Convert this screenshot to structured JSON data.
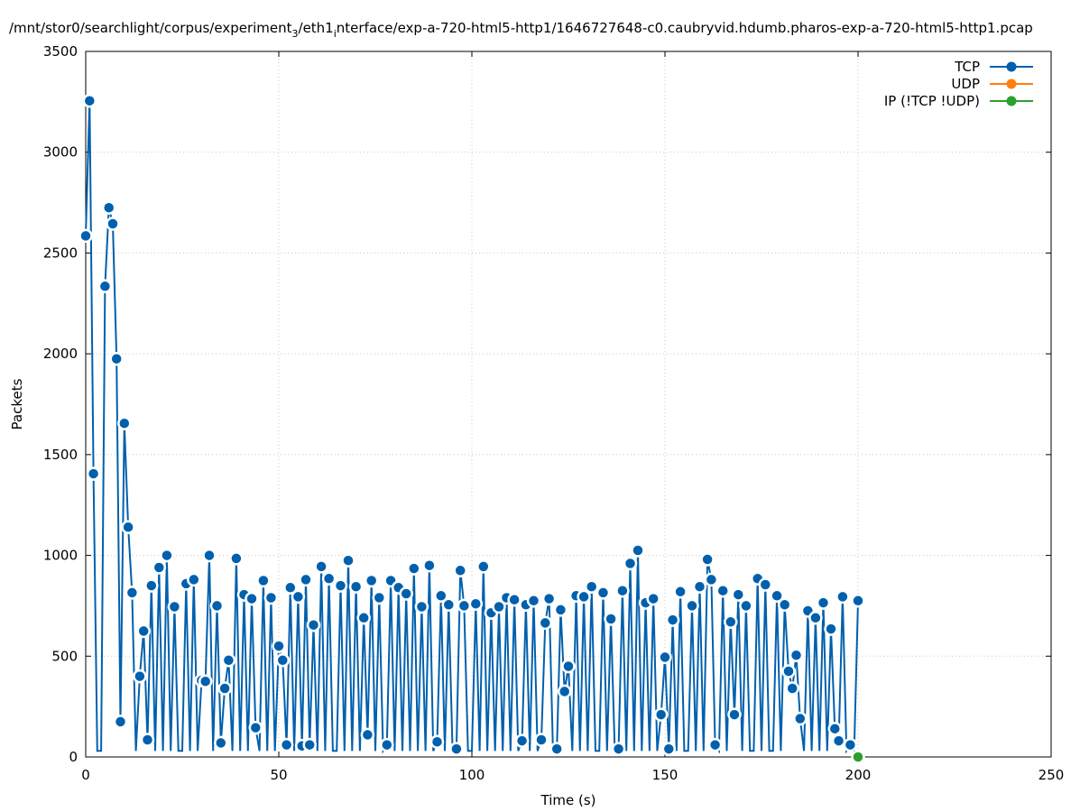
{
  "chart_data": {
    "type": "line",
    "title": "/mnt/stor0/searchlight/corpus/experiment",
    "title_sub": "3",
    "title_rest": "/eth1",
    "title_sub2": "i",
    "title_rest2": "nterface/exp-a-720-html5-http1/1646727648-c0.caubryvid.hdumb.pharos-exp-a-720-html5-http1.pcap",
    "xlabel": "Time (s)",
    "ylabel": "Packets",
    "xlim": [
      0,
      250
    ],
    "ylim": [
      0,
      3500
    ],
    "xticks": [
      0,
      50,
      100,
      150,
      200,
      250
    ],
    "yticks": [
      0,
      500,
      1000,
      1500,
      2000,
      2500,
      3000,
      3500
    ],
    "grid": true,
    "legend_position": "top-right",
    "series": [
      {
        "name": "TCP",
        "color": "#0060ad",
        "points": [
          [
            0,
            2585
          ],
          [
            1,
            3255
          ],
          [
            2,
            1405
          ],
          [
            3,
            30
          ],
          [
            4,
            30
          ],
          [
            5,
            2335
          ],
          [
            6,
            2725
          ],
          [
            7,
            2645
          ],
          [
            8,
            1975
          ],
          [
            9,
            175
          ],
          [
            10,
            1655
          ],
          [
            11,
            1140
          ],
          [
            12,
            815
          ],
          [
            13,
            30
          ],
          [
            14,
            400
          ],
          [
            15,
            625
          ],
          [
            16,
            85
          ],
          [
            17,
            850
          ],
          [
            18,
            30
          ],
          [
            19,
            940
          ],
          [
            20,
            30
          ],
          [
            21,
            1000
          ],
          [
            22,
            30
          ],
          [
            23,
            745
          ],
          [
            24,
            30
          ],
          [
            25,
            30
          ],
          [
            26,
            860
          ],
          [
            27,
            30
          ],
          [
            28,
            880
          ],
          [
            29,
            30
          ],
          [
            30,
            380
          ],
          [
            31,
            375
          ],
          [
            32,
            1000
          ],
          [
            33,
            30
          ],
          [
            34,
            750
          ],
          [
            35,
            70
          ],
          [
            36,
            340
          ],
          [
            37,
            480
          ],
          [
            38,
            30
          ],
          [
            39,
            985
          ],
          [
            40,
            30
          ],
          [
            41,
            805
          ],
          [
            42,
            30
          ],
          [
            43,
            785
          ],
          [
            44,
            145
          ],
          [
            45,
            30
          ],
          [
            46,
            875
          ],
          [
            47,
            30
          ],
          [
            48,
            790
          ],
          [
            49,
            30
          ],
          [
            50,
            550
          ],
          [
            51,
            480
          ],
          [
            52,
            60
          ],
          [
            53,
            840
          ],
          [
            54,
            30
          ],
          [
            55,
            795
          ],
          [
            56,
            55
          ],
          [
            57,
            880
          ],
          [
            58,
            60
          ],
          [
            59,
            655
          ],
          [
            60,
            30
          ],
          [
            61,
            945
          ],
          [
            62,
            30
          ],
          [
            63,
            885
          ],
          [
            64,
            30
          ],
          [
            65,
            30
          ],
          [
            66,
            850
          ],
          [
            67,
            30
          ],
          [
            68,
            975
          ],
          [
            69,
            30
          ],
          [
            70,
            845
          ],
          [
            71,
            30
          ],
          [
            72,
            690
          ],
          [
            73,
            110
          ],
          [
            74,
            875
          ],
          [
            75,
            30
          ],
          [
            76,
            790
          ],
          [
            77,
            30
          ],
          [
            78,
            60
          ],
          [
            79,
            875
          ],
          [
            80,
            30
          ],
          [
            81,
            840
          ],
          [
            82,
            30
          ],
          [
            83,
            810
          ],
          [
            84,
            30
          ],
          [
            85,
            935
          ],
          [
            86,
            30
          ],
          [
            87,
            745
          ],
          [
            88,
            30
          ],
          [
            89,
            950
          ],
          [
            90,
            30
          ],
          [
            91,
            75
          ],
          [
            92,
            800
          ],
          [
            93,
            30
          ],
          [
            94,
            755
          ],
          [
            95,
            30
          ],
          [
            96,
            40
          ],
          [
            97,
            925
          ],
          [
            98,
            750
          ],
          [
            99,
            30
          ],
          [
            100,
            30
          ],
          [
            101,
            760
          ],
          [
            102,
            30
          ],
          [
            103,
            945
          ],
          [
            104,
            30
          ],
          [
            105,
            715
          ],
          [
            106,
            30
          ],
          [
            107,
            745
          ],
          [
            108,
            30
          ],
          [
            109,
            790
          ],
          [
            110,
            30
          ],
          [
            111,
            780
          ],
          [
            112,
            30
          ],
          [
            113,
            80
          ],
          [
            114,
            755
          ],
          [
            115,
            30
          ],
          [
            116,
            775
          ],
          [
            117,
            30
          ],
          [
            118,
            85
          ],
          [
            119,
            665
          ],
          [
            120,
            785
          ],
          [
            121,
            30
          ],
          [
            122,
            40
          ],
          [
            123,
            730
          ],
          [
            124,
            325
          ],
          [
            125,
            450
          ],
          [
            126,
            30
          ],
          [
            127,
            800
          ],
          [
            128,
            30
          ],
          [
            129,
            795
          ],
          [
            130,
            30
          ],
          [
            131,
            845
          ],
          [
            132,
            30
          ],
          [
            133,
            30
          ],
          [
            134,
            815
          ],
          [
            135,
            30
          ],
          [
            136,
            685
          ],
          [
            137,
            30
          ],
          [
            138,
            40
          ],
          [
            139,
            825
          ],
          [
            140,
            30
          ],
          [
            141,
            960
          ],
          [
            142,
            30
          ],
          [
            143,
            1025
          ],
          [
            144,
            30
          ],
          [
            145,
            765
          ],
          [
            146,
            30
          ],
          [
            147,
            785
          ],
          [
            148,
            30
          ],
          [
            149,
            210
          ],
          [
            150,
            495
          ],
          [
            151,
            40
          ],
          [
            152,
            680
          ],
          [
            153,
            30
          ],
          [
            154,
            820
          ],
          [
            155,
            30
          ],
          [
            156,
            30
          ],
          [
            157,
            750
          ],
          [
            158,
            30
          ],
          [
            159,
            845
          ],
          [
            160,
            30
          ],
          [
            161,
            980
          ],
          [
            162,
            880
          ],
          [
            163,
            60
          ],
          [
            164,
            30
          ],
          [
            165,
            825
          ],
          [
            166,
            30
          ],
          [
            167,
            670
          ],
          [
            168,
            210
          ],
          [
            169,
            805
          ],
          [
            170,
            30
          ],
          [
            171,
            750
          ],
          [
            172,
            30
          ],
          [
            173,
            30
          ],
          [
            174,
            885
          ],
          [
            175,
            30
          ],
          [
            176,
            855
          ],
          [
            177,
            30
          ],
          [
            178,
            30
          ],
          [
            179,
            800
          ],
          [
            180,
            30
          ],
          [
            181,
            755
          ],
          [
            182,
            425
          ],
          [
            183,
            340
          ],
          [
            184,
            505
          ],
          [
            185,
            190
          ],
          [
            186,
            30
          ],
          [
            187,
            725
          ],
          [
            188,
            30
          ],
          [
            189,
            690
          ],
          [
            190,
            30
          ],
          [
            191,
            765
          ],
          [
            192,
            30
          ],
          [
            193,
            635
          ],
          [
            194,
            140
          ],
          [
            195,
            80
          ],
          [
            196,
            795
          ],
          [
            197,
            30
          ],
          [
            198,
            60
          ],
          [
            199,
            30
          ],
          [
            200,
            775
          ]
        ]
      },
      {
        "name": "UDP",
        "color": "#ff7f0e",
        "points": []
      },
      {
        "name": "IP (!TCP  !UDP)",
        "color": "#2ca02c",
        "points": [
          [
            200,
            0
          ]
        ]
      }
    ]
  }
}
